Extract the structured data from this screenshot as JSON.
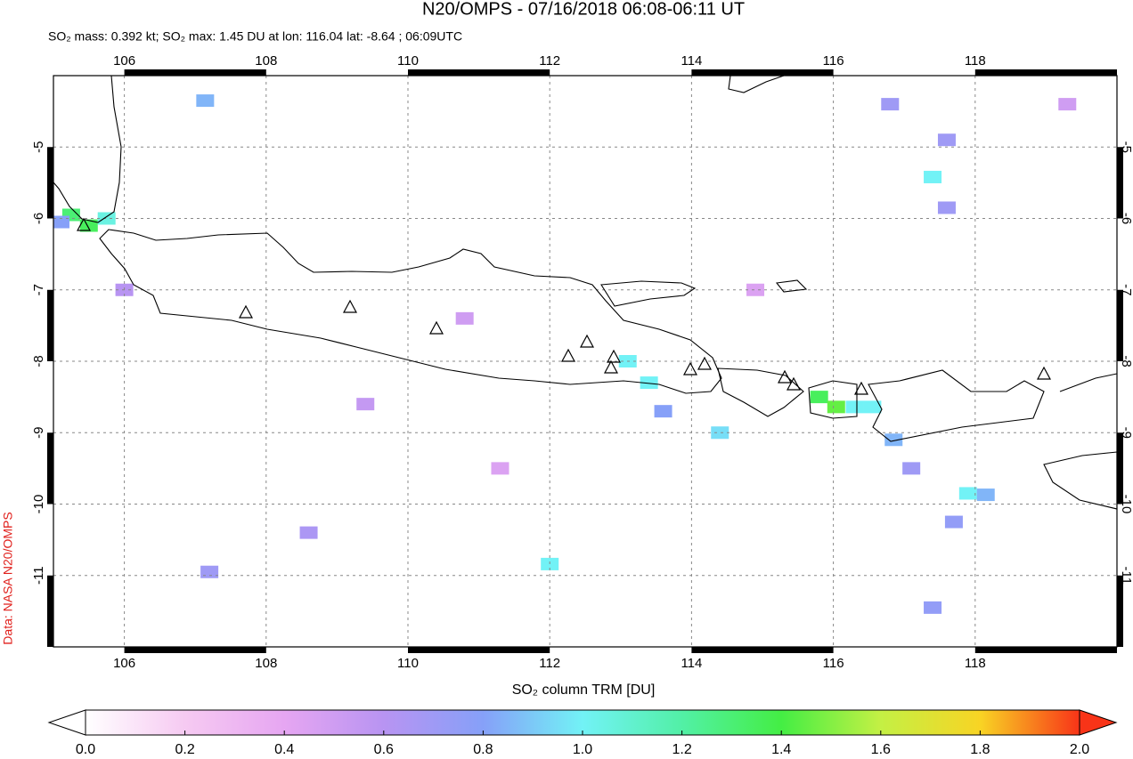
{
  "title": "N20/OMPS - 07/16/2018 06:08-06:11 UT",
  "subtitle": "SO₂ mass: 0.392 kt; SO₂ max: 1.45 DU at lon: 116.04 lat: -8.64 ; 06:09UTC",
  "credit": "Data: NASA N20/OMPS",
  "map": {
    "xlim": [
      105,
      120
    ],
    "ylim": [
      -12,
      -4
    ],
    "xticks": [
      106,
      108,
      110,
      112,
      114,
      116,
      118
    ],
    "yticks": [
      -5,
      -6,
      -7,
      -8,
      -9,
      -10,
      -11
    ],
    "pixels": [
      {
        "lon": 105.25,
        "lat": -5.95,
        "value": 1.3
      },
      {
        "lon": 105.5,
        "lat": -6.1,
        "value": 1.35
      },
      {
        "lon": 105.75,
        "lat": -6.0,
        "value": 1.05
      },
      {
        "lon": 105.1,
        "lat": -6.05,
        "value": 0.8
      },
      {
        "lon": 113.1,
        "lat": -8.0,
        "value": 1.0
      },
      {
        "lon": 113.4,
        "lat": -8.3,
        "value": 1.0
      },
      {
        "lon": 113.6,
        "lat": -8.7,
        "value": 0.8
      },
      {
        "lon": 114.4,
        "lat": -9.0,
        "value": 0.95
      },
      {
        "lon": 115.8,
        "lat": -8.5,
        "value": 1.35
      },
      {
        "lon": 116.04,
        "lat": -8.64,
        "value": 1.45
      },
      {
        "lon": 116.3,
        "lat": -8.64,
        "value": 1.0
      },
      {
        "lon": 116.55,
        "lat": -8.64,
        "value": 1.0
      },
      {
        "lon": 116.85,
        "lat": -9.1,
        "value": 0.85
      },
      {
        "lon": 117.4,
        "lat": -5.42,
        "value": 1.0
      },
      {
        "lon": 117.6,
        "lat": -5.85,
        "value": 0.7
      },
      {
        "lon": 117.9,
        "lat": -9.85,
        "value": 1.0
      },
      {
        "lon": 118.15,
        "lat": -9.87,
        "value": 0.85
      },
      {
        "lon": 112.0,
        "lat": -10.84,
        "value": 1.0
      },
      {
        "lon": 107.14,
        "lat": -4.35,
        "value": 0.85
      },
      {
        "lon": 116.8,
        "lat": -4.4,
        "value": 0.7
      },
      {
        "lon": 117.6,
        "lat": -4.9,
        "value": 0.7
      },
      {
        "lon": 117.4,
        "lat": -11.45,
        "value": 0.75
      },
      {
        "lon": 107.2,
        "lat": -10.95,
        "value": 0.7
      },
      {
        "lon": 108.6,
        "lat": -10.4,
        "value": 0.65
      },
      {
        "lon": 117.1,
        "lat": -9.5,
        "value": 0.7
      },
      {
        "lon": 117.7,
        "lat": -10.25,
        "value": 0.75
      },
      {
        "lon": 106.0,
        "lat": -7.0,
        "value": 0.6
      },
      {
        "lon": 110.8,
        "lat": -7.4,
        "value": 0.5
      },
      {
        "lon": 114.9,
        "lat": -7.0,
        "value": 0.45
      },
      {
        "lon": 119.3,
        "lat": -4.4,
        "value": 0.5
      },
      {
        "lon": 109.4,
        "lat": -8.6,
        "value": 0.55
      },
      {
        "lon": 111.3,
        "lat": -9.5,
        "value": 0.45
      }
    ]
  },
  "colorbar": {
    "label": "SO₂ column TRM [DU]",
    "clim": [
      0,
      2
    ],
    "colors": [
      "#ffffff",
      "#f6caf2",
      "#e6a6f2",
      "#b894f2",
      "#86a0f8",
      "#72f2f6",
      "#52f0a6",
      "#44ee44",
      "#c4f044",
      "#f8d424",
      "#f83418"
    ],
    "ticks": [
      {
        "value": 0,
        "label": "0.0"
      },
      {
        "value": 0.2,
        "label": "0.2"
      },
      {
        "value": 0.4,
        "label": "0.4"
      },
      {
        "value": 0.6,
        "label": "0.6"
      },
      {
        "value": 0.8,
        "label": "0.8"
      },
      {
        "value": 1,
        "label": "1.0"
      },
      {
        "value": 1.2,
        "label": "1.2"
      },
      {
        "value": 1.4,
        "label": "1.4"
      },
      {
        "value": 1.6,
        "label": "1.6"
      },
      {
        "value": 1.8,
        "label": "1.8"
      },
      {
        "value": 2,
        "label": "2.0"
      }
    ]
  }
}
